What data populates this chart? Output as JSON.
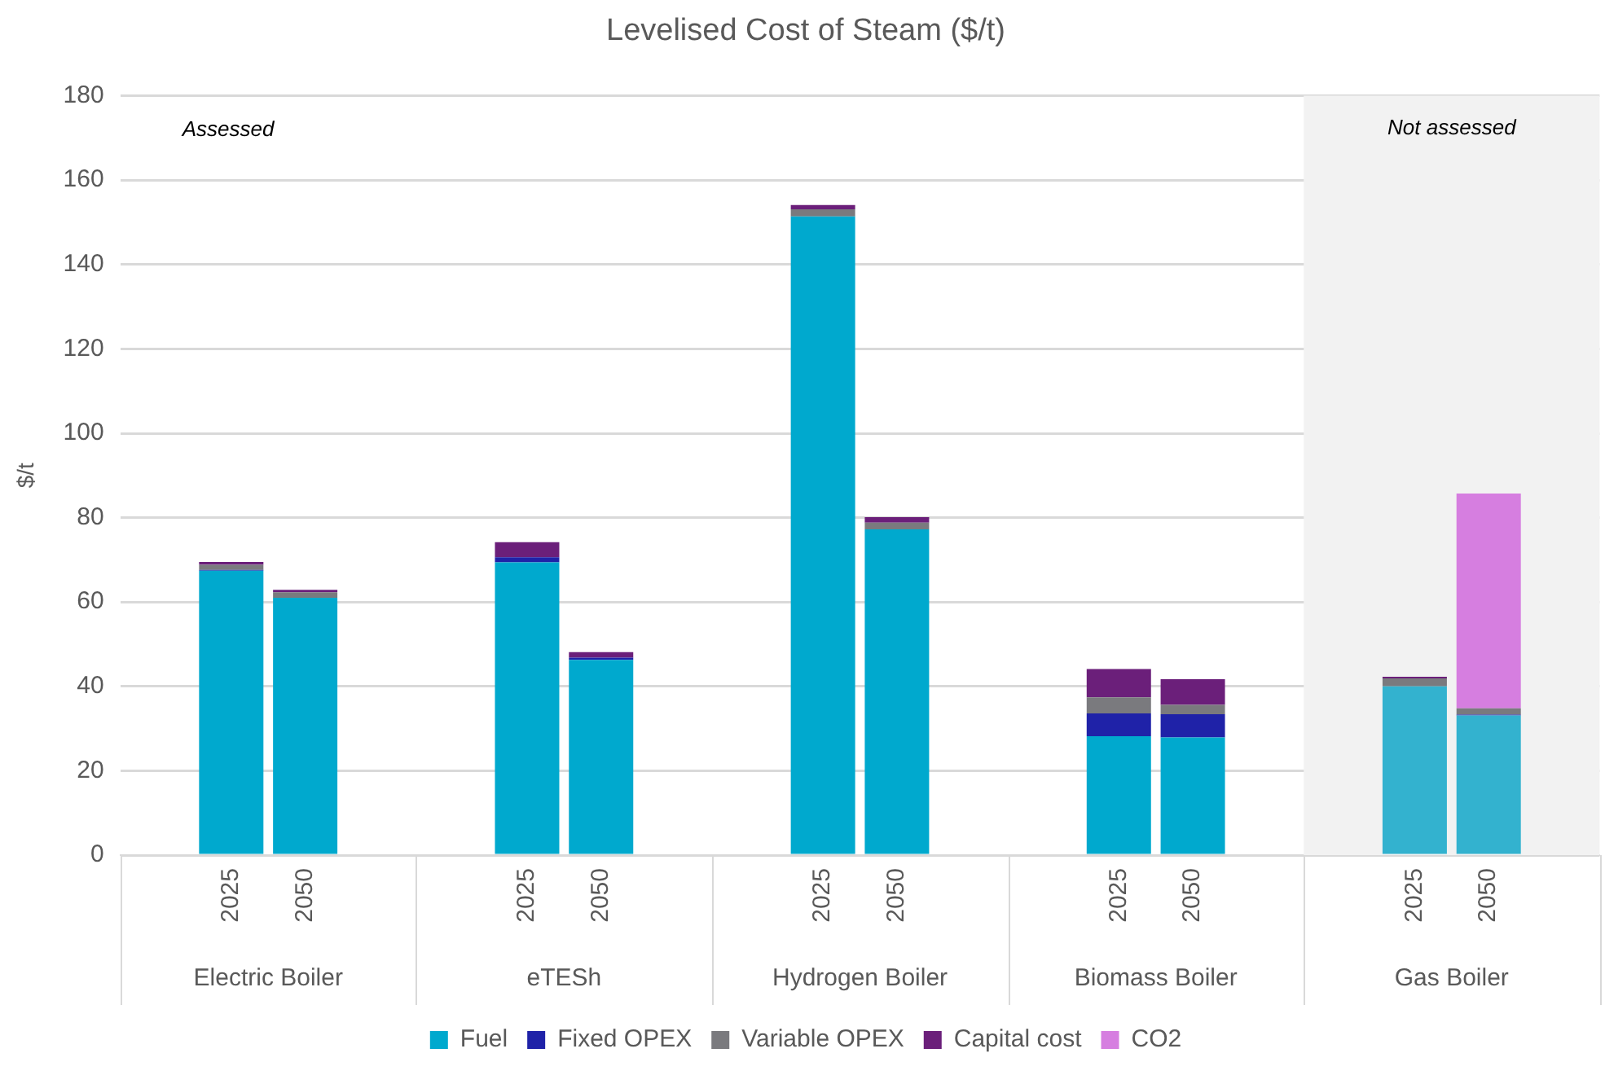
{
  "chart_data": {
    "type": "bar",
    "stacked": true,
    "title": "Levelised Cost of Steam ($/t)",
    "ylabel": "$/t",
    "categories": [
      null,
      "2025",
      "2050",
      null,
      null,
      "2025",
      "2050",
      null,
      null,
      "2025",
      "2050",
      null,
      null,
      "2025",
      "2050",
      null,
      null,
      "2025",
      "2050",
      null
    ],
    "series": [
      {
        "name": "Fuel",
        "color": "#00a9ce",
        "colors": [
          "#00a9ce",
          "#00a9ce",
          "#00a9ce",
          "#00a9ce",
          "#00a9ce",
          "#00a9ce",
          "#00a9ce",
          "#00a9ce",
          "#00a9ce",
          "#00a9ce",
          "#00a9ce",
          "#00a9ce",
          "#00a9ce",
          "#00a9ce",
          "#00a9ce",
          "#00a9ce",
          "#33b2cf",
          "#33b2cf",
          "#33b2cf",
          "#33b2cf"
        ],
        "values": [
          null,
          67.4,
          61,
          null,
          null,
          69.4,
          46.3,
          null,
          null,
          151.4,
          77.2,
          null,
          null,
          28.2,
          27.9,
          null,
          null,
          40.0,
          33.1,
          null
        ]
      },
      {
        "name": "Fixed OPEX",
        "color": "#1f22a8",
        "values": [
          null,
          0.2,
          0,
          null,
          null,
          1.2,
          0.5,
          null,
          null,
          0,
          0,
          null,
          null,
          5.4,
          5.5,
          null,
          null,
          0,
          0.2,
          null
        ]
      },
      {
        "name": "Variable OPEX",
        "color": "#7a7a7e",
        "values": [
          null,
          1.2,
          1.3,
          null,
          null,
          0,
          0,
          null,
          null,
          1.7,
          1.6,
          null,
          null,
          3.8,
          2.2,
          null,
          null,
          1.9,
          1.5,
          null
        ]
      },
      {
        "name": "Capital cost",
        "color": "#6b1f7a",
        "values": [
          null,
          0.7,
          0.6,
          null,
          null,
          3.6,
          1.3,
          null,
          null,
          1.0,
          1.3,
          null,
          null,
          6.7,
          6.1,
          null,
          null,
          0.4,
          0,
          null
        ]
      },
      {
        "name": "CO2",
        "color": "#d67ee0",
        "values": [
          null,
          null,
          null,
          null,
          null,
          null,
          null,
          null,
          null,
          null,
          null,
          null,
          null,
          null,
          null,
          null,
          null,
          null,
          50.9,
          null
        ]
      }
    ],
    "ylim": [
      0,
      180
    ],
    "yticks": [
      0,
      20,
      40,
      60,
      80,
      100,
      120,
      140,
      160,
      180
    ],
    "grid": "y",
    "legend": "bottom",
    "annotations": [
      "Assessed",
      "Not assessed",
      "Electric Boiler",
      "eTESh",
      "Hydrogen Boiler",
      "Biomass Boiler",
      "Gas Boiler"
    ]
  }
}
